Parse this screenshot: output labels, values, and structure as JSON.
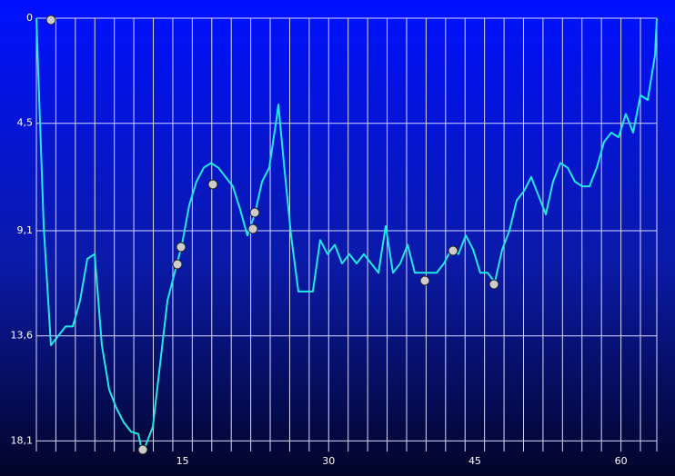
{
  "chart_data": {
    "type": "line",
    "color": "#22e8e8",
    "x": [
      0,
      0.75,
      1.49,
      2.24,
      2.99,
      3.73,
      4.48,
      5.23,
      5.98,
      6.72,
      7.47,
      8.22,
      8.96,
      9.71,
      10.46,
      10.83,
      11.2,
      11.95,
      12.7,
      13.45,
      14.19,
      14.94,
      15.69,
      16.43,
      17.18,
      17.93,
      18.67,
      19.42,
      20.17,
      20.92,
      21.66,
      22.41,
      23.16,
      23.9,
      24.65,
      24.84,
      25.4,
      26.14,
      26.89,
      27.64,
      28.38,
      29.13,
      29.88,
      30.63,
      31.37,
      32.12,
      32.87,
      33.61,
      34.36,
      35.11,
      35.85,
      36.6,
      37.35,
      38.1,
      38.84,
      39.59,
      40.34,
      41.08,
      41.83,
      42.58,
      43.32,
      44.07,
      44.82,
      45.56,
      46.31,
      47.06,
      47.81,
      48.55,
      49.3,
      50.05,
      50.79,
      51.54,
      52.29,
      53.03,
      53.78,
      54.53,
      55.28,
      56.02,
      56.77,
      57.52,
      58.26,
      59.01,
      59.76,
      60.5,
      61.25,
      62.0,
      62.75,
      63.49,
      63.68
    ],
    "values": [
      0,
      8.9,
      14.0,
      13.6,
      13.2,
      13.2,
      12.1,
      10.3,
      10.1,
      14.0,
      15.9,
      16.7,
      17.3,
      17.7,
      17.8,
      18.5,
      18.3,
      17.5,
      14.8,
      12.1,
      10.9,
      9.7,
      8.0,
      7.0,
      6.4,
      6.2,
      6.4,
      6.8,
      7.2,
      8.2,
      9.3,
      8.4,
      7.0,
      6.4,
      4.3,
      3.7,
      6.2,
      9.3,
      11.7,
      11.7,
      11.7,
      9.5,
      10.1,
      9.7,
      10.5,
      10.1,
      10.5,
      10.1,
      10.5,
      10.9,
      8.9,
      10.9,
      10.5,
      9.7,
      10.9,
      10.9,
      10.9,
      10.9,
      10.5,
      9.9,
      10.1,
      9.3,
      9.9,
      10.9,
      10.9,
      11.3,
      9.9,
      9.1,
      7.8,
      7.4,
      6.8,
      7.6,
      8.4,
      7.0,
      6.2,
      6.4,
      7.0,
      7.2,
      7.2,
      6.4,
      5.3,
      4.9,
      5.1,
      4.1,
      4.9,
      3.3,
      3.5,
      1.6,
      0
    ],
    "xlim": [
      0,
      63.68
    ],
    "xticks": [
      15,
      30,
      45,
      60
    ],
    "x_grid_interval": 2,
    "ylim": [
      0,
      18.55
    ],
    "yticks": [
      0,
      {
        "value": 4.5,
        "label": "4,5"
      },
      {
        "value": 9.1,
        "label": "9,1"
      },
      {
        "value": 13.6,
        "label": "13,6"
      },
      {
        "value": 18.1,
        "label": "18,1"
      }
    ],
    "y_inverted": true,
    "grid": true
  }
}
